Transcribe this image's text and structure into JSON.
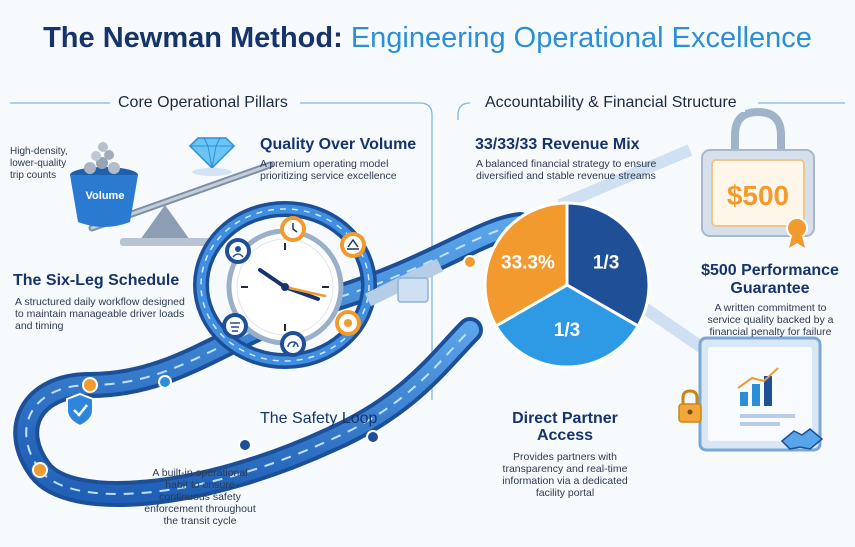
{
  "title": {
    "part1": "The Newman Method:",
    "part2": "Engineering Operational Excellence"
  },
  "left_section": {
    "heading": "Core Operational Pillars"
  },
  "right_section": {
    "heading": "Accountability & Financial Structure"
  },
  "bucket": {
    "note": "High-density, lower-quality trip counts",
    "label": "Volume"
  },
  "quality": {
    "title": "Quality Over Volume",
    "desc": "A premium operating model prioritizing service excellence"
  },
  "schedule": {
    "title": "The Six-Leg Schedule",
    "desc": "A structured daily workflow designed to maintain manageable driver loads and timing"
  },
  "safety": {
    "title": "The Safety Loop",
    "desc": "A built-in operational habit to ensure continuous safety enforcement throughout the transit cycle"
  },
  "revenue": {
    "title": "33/33/33 Revenue Mix",
    "desc": "A balanced financial strategy to ensure diversified and stable revenue streams"
  },
  "chart_data": {
    "type": "pie",
    "categories": [
      "",
      "",
      ""
    ],
    "values": [
      33.3,
      33.3,
      33.3
    ],
    "slice_labels": [
      "33.3%",
      "1/3",
      "1/3"
    ],
    "colors": [
      "#1f4f96",
      "#2e9ae6",
      "#f29a2e"
    ]
  },
  "guarantee": {
    "badge": "$500",
    "title": "$500 Performance Guarantee",
    "desc": "A written commitment to service quality backed by a financial penalty for failure"
  },
  "partner": {
    "title": "Direct Partner Access",
    "desc": "Provides partners with transparency and real-time information via a dedicated facility portal"
  },
  "colors": {
    "navy": "#16346b",
    "blue": "#2a8fd8",
    "orange": "#f29a2e",
    "track": "#3a7fd0"
  },
  "icons": [
    "diamond-icon",
    "clock-icon",
    "gear-icon",
    "shield-check-icon",
    "padlock-icon",
    "handshake-icon",
    "bar-chart-icon",
    "lock-icon",
    "ribbon-icon"
  ]
}
